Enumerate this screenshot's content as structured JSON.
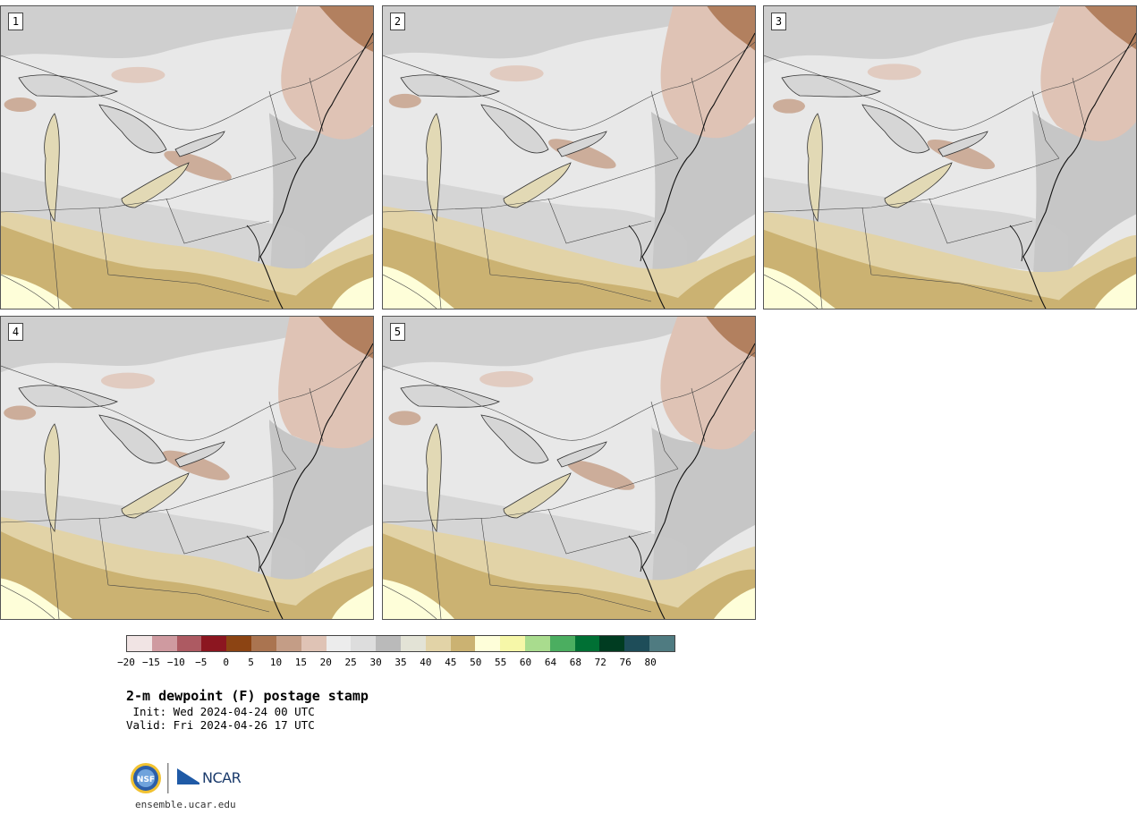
{
  "panels": [
    {
      "label": "1",
      "variant": 0
    },
    {
      "label": "2",
      "variant": 1
    },
    {
      "label": "3",
      "variant": 2
    },
    {
      "label": "4",
      "variant": 3
    },
    {
      "label": "5",
      "variant": 4
    }
  ],
  "colorbar": {
    "colors": [
      "#f1e4e4",
      "#cf9aa0",
      "#ad5a62",
      "#8c1620",
      "#8c4413",
      "#aa7450",
      "#c49d86",
      "#dfc3b5",
      "#ececec",
      "#dddddd",
      "#bababa",
      "#e3e3d6",
      "#e2d3a7",
      "#cbb272",
      "#fefed9",
      "#f6f7a8",
      "#a9dc8e",
      "#4bae60",
      "#007034",
      "#003c21",
      "#1e4d59",
      "#4f7b81"
    ],
    "ticks": [
      "−20",
      "−15",
      "−10",
      "−5",
      "0",
      "5",
      "10",
      "15",
      "20",
      "25",
      "30",
      "35",
      "40",
      "45",
      "50",
      "55",
      "60",
      "64",
      "68",
      "72",
      "76",
      "80"
    ]
  },
  "title": "2-m dewpoint (F) postage stamp",
  "init_line": " Init: Wed 2024-04-24 00 UTC",
  "valid_line": "Valid: Fri 2024-04-26 17 UTC",
  "logo": {
    "nsf": "NSF",
    "ncar": "NCAR"
  },
  "url": "ensemble.ucar.edu"
}
